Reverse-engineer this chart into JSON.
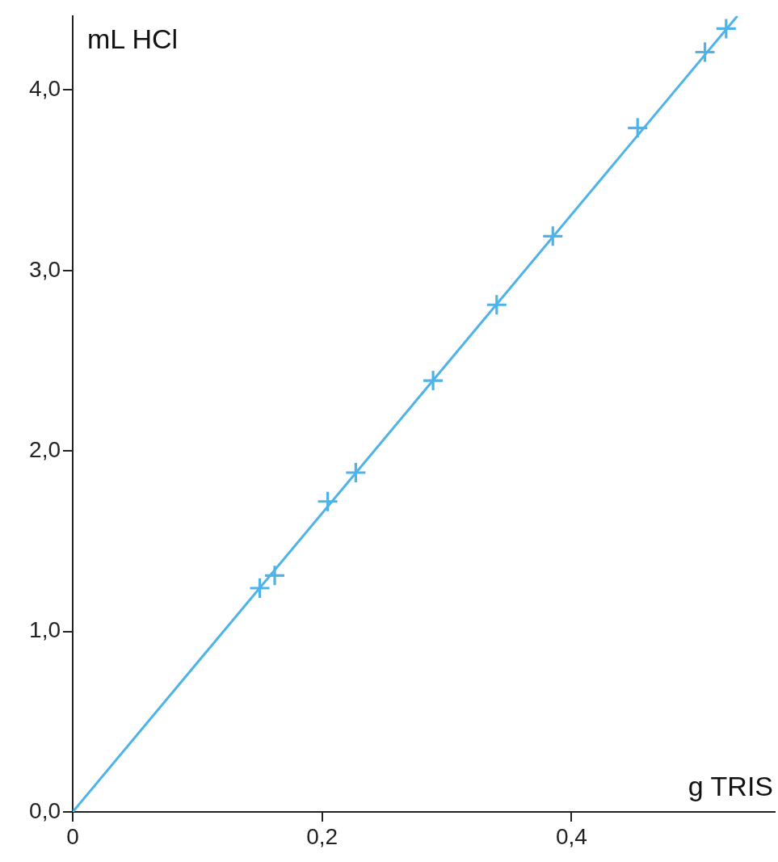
{
  "chart_data": {
    "type": "scatter",
    "xlabel": "g TRIS",
    "ylabel": "mL HCl",
    "marker": "cross",
    "grid": false,
    "legend": false,
    "xlim": [
      0,
      0.563
    ],
    "ylim": [
      0,
      4.41
    ],
    "xticks": [
      0,
      {
        "value": 0.2,
        "label": "0,2"
      },
      {
        "value": 0.4,
        "label": "0,4"
      }
    ],
    "yticks": [
      {
        "value": 0,
        "label": "0,0"
      },
      {
        "value": 1,
        "label": "1,0"
      },
      {
        "value": 2,
        "label": "2,0"
      },
      {
        "value": 3,
        "label": "3,0"
      },
      {
        "value": 4,
        "label": "4,0"
      }
    ],
    "series": [
      {
        "color": "#4db3e8",
        "x": [
          0.15,
          0.162,
          0.2045,
          0.227,
          0.289,
          0.34,
          0.385,
          0.453,
          0.507,
          0.524
        ],
        "values": [
          1.24,
          1.31,
          1.72,
          1.88,
          2.39,
          2.81,
          3.19,
          3.79,
          4.21,
          4.34
        ]
      },
      {
        "type": "line",
        "color": "#4db3e8",
        "marker": "none",
        "x": [
          0,
          0.533
        ],
        "values": [
          0,
          4.41
        ]
      }
    ]
  }
}
